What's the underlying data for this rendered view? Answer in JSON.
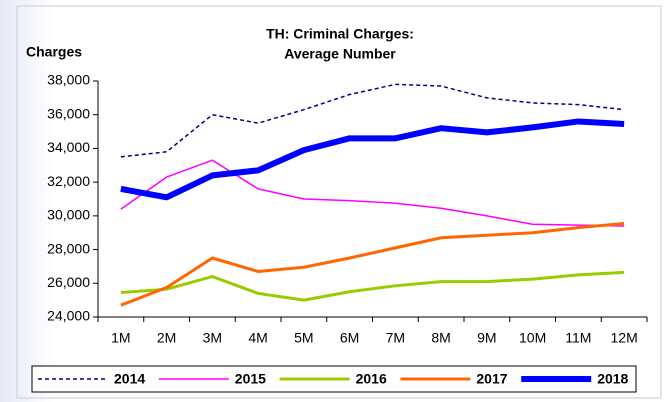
{
  "chart_data": {
    "type": "line",
    "title": [
      "TH: Criminal Charges:",
      "Average Number"
    ],
    "y_label": "Charges",
    "categories": [
      "1M",
      "2M",
      "3M",
      "4M",
      "5M",
      "6M",
      "7M",
      "8M",
      "9M",
      "10M",
      "11M",
      "12M"
    ],
    "series": [
      {
        "name": "2014",
        "color": "#000080",
        "width": 1.5,
        "dash": true,
        "values": [
          33500,
          33800,
          36000,
          35500,
          36300,
          37200,
          37800,
          37700,
          37000,
          36700,
          36600,
          36300
        ]
      },
      {
        "name": "2015",
        "color": "#ff00ff",
        "width": 1.5,
        "dash": false,
        "values": [
          30400,
          32300,
          33300,
          31600,
          31000,
          30900,
          30750,
          30450,
          30000,
          29500,
          29450,
          29400
        ]
      },
      {
        "name": "2016",
        "color": "#99cc00",
        "width": 3,
        "dash": false,
        "values": [
          25450,
          25650,
          26400,
          25400,
          25000,
          25500,
          25850,
          26100,
          26100,
          26250,
          26500,
          26650
        ]
      },
      {
        "name": "2017",
        "color": "#ff6600",
        "width": 3,
        "dash": false,
        "values": [
          24700,
          25750,
          27500,
          26700,
          26950,
          27500,
          28100,
          28700,
          28850,
          29000,
          29300,
          29550
        ]
      },
      {
        "name": "2018",
        "color": "#0000ff",
        "width": 6,
        "dash": false,
        "values": [
          31600,
          31100,
          32400,
          32700,
          33900,
          34600,
          34600,
          35200,
          34950,
          35250,
          35600,
          35450
        ]
      }
    ],
    "ylim": [
      24000,
      38000
    ],
    "yticks": [
      {
        "value": 24000,
        "label": "24,000"
      },
      {
        "value": 26000,
        "label": "26,000"
      },
      {
        "value": 28000,
        "label": "28,000"
      },
      {
        "value": 30000,
        "label": "30,000"
      },
      {
        "value": 32000,
        "label": "32,000"
      },
      {
        "value": 34000,
        "label": "34,000"
      },
      {
        "value": 36000,
        "label": "36,000"
      },
      {
        "value": 38000,
        "label": "38,000"
      }
    ],
    "grid": false,
    "legend": "bottom"
  }
}
